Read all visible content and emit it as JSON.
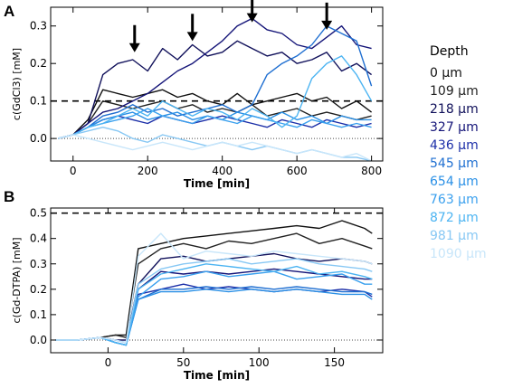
{
  "colors": {
    "depth_0": "#111111",
    "depth_109": "#222222",
    "depth_218": "#10105a",
    "depth_327": "#141478",
    "depth_436": "#1c2fa8",
    "depth_545": "#1f6fd1",
    "depth_654": "#2a90e6",
    "depth_763": "#3aa0ee",
    "depth_872": "#4cb4f2",
    "depth_981": "#88c8f4",
    "depth_1090": "#c8e6fa",
    "reference_dashed": "#000000",
    "zero_dotted": "#444444"
  },
  "legend": {
    "title": "Depth",
    "entries": [
      "0 μm",
      "109 μm",
      "218 μm",
      "327 μm",
      "436 μm",
      "545 μm",
      "654 μm",
      "763 μm",
      "872 μm",
      "981 μm",
      "1090 μm"
    ]
  },
  "chart_data": [
    {
      "panel_label": "A",
      "type": "line",
      "title": "",
      "xlabel": "Time [min]",
      "ylabel": "c(GdCl3) [mM]",
      "xlim": [
        -60,
        830
      ],
      "ylim": [
        -0.06,
        0.35
      ],
      "xticks": [
        0,
        200,
        400,
        600,
        800
      ],
      "yticks": [
        0.0,
        0.1,
        0.2,
        0.3
      ],
      "xtick_labels": [
        "0",
        "200",
        "400",
        "600",
        "800"
      ],
      "ytick_labels": [
        "0.0",
        "0.1",
        "0.2",
        "0.3"
      ],
      "dashed_reference_y": 0.1,
      "dotted_reference_y": 0.0,
      "arrows": [
        {
          "x": 165,
          "y_tip": 0.23
        },
        {
          "x": 320,
          "y_tip": 0.26
        },
        {
          "x": 480,
          "y_tip": 0.31
        },
        {
          "x": 680,
          "y_tip": 0.29
        }
      ],
      "x": [
        -40,
        0,
        40,
        80,
        120,
        160,
        200,
        240,
        280,
        320,
        360,
        400,
        440,
        480,
        520,
        560,
        600,
        640,
        680,
        720,
        760,
        800
      ],
      "series": [
        {
          "name": "0 μm",
          "values": [
            0.0,
            0.01,
            0.05,
            0.13,
            0.12,
            0.11,
            0.12,
            0.13,
            0.11,
            0.12,
            0.1,
            0.09,
            0.12,
            0.09,
            0.1,
            0.11,
            0.12,
            0.1,
            0.11,
            0.08,
            0.1,
            0.07
          ]
        },
        {
          "name": "109 μm",
          "values": [
            0.0,
            0.01,
            0.04,
            0.1,
            0.09,
            0.08,
            0.09,
            0.1,
            0.08,
            0.09,
            0.07,
            0.08,
            0.07,
            0.09,
            0.06,
            0.07,
            0.08,
            0.06,
            0.07,
            0.06,
            0.05,
            0.06
          ]
        },
        {
          "name": "218 μm",
          "values": [
            0.0,
            0.01,
            0.04,
            0.17,
            0.2,
            0.21,
            0.18,
            0.24,
            0.21,
            0.25,
            0.22,
            0.23,
            0.26,
            0.24,
            0.22,
            0.23,
            0.2,
            0.21,
            0.23,
            0.18,
            0.2,
            0.17
          ]
        },
        {
          "name": "327 μm",
          "values": [
            0.0,
            0.01,
            0.04,
            0.07,
            0.08,
            0.1,
            0.12,
            0.15,
            0.18,
            0.2,
            0.23,
            0.26,
            0.3,
            0.32,
            0.29,
            0.28,
            0.25,
            0.24,
            0.27,
            0.3,
            0.25,
            0.24
          ]
        },
        {
          "name": "436 μm",
          "values": [
            0.0,
            0.01,
            0.03,
            0.05,
            0.06,
            0.05,
            0.04,
            0.06,
            0.05,
            0.04,
            0.05,
            0.06,
            0.05,
            0.04,
            0.03,
            0.05,
            0.04,
            0.03,
            0.05,
            0.04,
            0.03,
            0.04
          ]
        },
        {
          "name": "545 μm",
          "values": [
            0.0,
            0.01,
            0.03,
            0.06,
            0.07,
            0.09,
            0.07,
            0.08,
            0.06,
            0.07,
            0.08,
            0.09,
            0.07,
            0.09,
            0.17,
            0.2,
            0.22,
            0.25,
            0.3,
            0.28,
            0.26,
            0.14
          ]
        },
        {
          "name": "654 μm",
          "values": [
            0.0,
            0.01,
            0.03,
            0.05,
            0.06,
            0.07,
            0.05,
            0.06,
            0.07,
            0.05,
            0.06,
            0.05,
            0.07,
            0.06,
            0.05,
            0.07,
            0.05,
            0.06,
            0.04,
            0.06,
            0.05,
            0.05
          ]
        },
        {
          "name": "763 μm",
          "values": [
            0.0,
            0.01,
            0.03,
            0.04,
            0.05,
            0.06,
            0.08,
            0.06,
            0.05,
            0.04,
            0.06,
            0.05,
            0.04,
            0.06,
            0.05,
            0.04,
            0.03,
            0.05,
            0.04,
            0.03,
            0.04,
            0.03
          ]
        },
        {
          "name": "872 μm",
          "values": [
            0.0,
            0.01,
            0.03,
            0.04,
            0.06,
            0.08,
            0.06,
            0.1,
            0.08,
            0.06,
            0.08,
            0.07,
            0.05,
            0.08,
            0.06,
            0.03,
            0.06,
            0.16,
            0.2,
            0.22,
            0.17,
            0.1
          ]
        },
        {
          "name": "981 μm",
          "values": [
            0.0,
            0.01,
            0.02,
            0.03,
            0.02,
            0.0,
            -0.01,
            0.01,
            0.0,
            -0.01,
            -0.02,
            -0.01,
            -0.02,
            -0.03,
            -0.02,
            -0.03,
            -0.04,
            -0.03,
            -0.04,
            -0.05,
            -0.05,
            -0.06
          ]
        },
        {
          "name": "1090 μm",
          "values": [
            0.0,
            0.01,
            0.0,
            -0.01,
            -0.02,
            -0.03,
            -0.02,
            -0.01,
            -0.02,
            -0.03,
            -0.02,
            -0.01,
            -0.02,
            -0.01,
            -0.02,
            -0.03,
            -0.04,
            -0.03,
            -0.04,
            -0.05,
            -0.04,
            -0.06
          ]
        }
      ]
    },
    {
      "panel_label": "B",
      "type": "line",
      "title": "",
      "xlabel": "Time [min]",
      "ylabel": "c(Gd-DTPA) [mM]",
      "xlim": [
        -38,
        182
      ],
      "ylim": [
        -0.05,
        0.52
      ],
      "xticks": [
        0,
        50,
        100,
        150
      ],
      "yticks": [
        0.0,
        0.1,
        0.2,
        0.3,
        0.4,
        0.5
      ],
      "xtick_labels": [
        "0",
        "50",
        "100",
        "150"
      ],
      "ytick_labels": [
        "0.0",
        "0.1",
        "0.2",
        "0.3",
        "0.4",
        "0.5"
      ],
      "dashed_reference_y": 0.5,
      "dotted_reference_y": 0.0,
      "x": [
        -35,
        -20,
        -5,
        5,
        12,
        20,
        35,
        50,
        65,
        80,
        95,
        110,
        125,
        140,
        155,
        170,
        175
      ],
      "series": [
        {
          "name": "0 μm",
          "values": [
            0.0,
            0.0,
            0.01,
            0.02,
            0.02,
            0.36,
            0.38,
            0.4,
            0.41,
            0.42,
            0.43,
            0.44,
            0.45,
            0.44,
            0.47,
            0.44,
            0.42
          ]
        },
        {
          "name": "109 μm",
          "values": [
            0.0,
            0.0,
            0.01,
            0.02,
            0.01,
            0.3,
            0.36,
            0.38,
            0.36,
            0.39,
            0.38,
            0.4,
            0.42,
            0.38,
            0.4,
            0.37,
            0.36
          ]
        },
        {
          "name": "218 μm",
          "values": [
            0.0,
            0.0,
            0.01,
            0.0,
            0.0,
            0.22,
            0.32,
            0.33,
            0.31,
            0.32,
            0.33,
            0.34,
            0.32,
            0.31,
            0.32,
            0.31,
            0.3
          ]
        },
        {
          "name": "327 μm",
          "values": [
            0.0,
            0.0,
            0.01,
            0.0,
            -0.01,
            0.2,
            0.27,
            0.26,
            0.27,
            0.26,
            0.27,
            0.28,
            0.27,
            0.26,
            0.25,
            0.24,
            0.24
          ]
        },
        {
          "name": "436 μm",
          "values": [
            0.0,
            0.0,
            0.01,
            -0.01,
            -0.02,
            0.18,
            0.2,
            0.22,
            0.2,
            0.21,
            0.2,
            0.19,
            0.2,
            0.19,
            0.2,
            0.19,
            0.17
          ]
        },
        {
          "name": "545 μm",
          "values": [
            0.0,
            0.0,
            0.01,
            -0.01,
            -0.02,
            0.16,
            0.2,
            0.2,
            0.21,
            0.2,
            0.21,
            0.2,
            0.21,
            0.2,
            0.19,
            0.19,
            0.18
          ]
        },
        {
          "name": "654 μm",
          "values": [
            0.0,
            0.0,
            0.01,
            -0.01,
            -0.02,
            0.16,
            0.19,
            0.19,
            0.2,
            0.19,
            0.2,
            0.19,
            0.2,
            0.19,
            0.18,
            0.18,
            0.16
          ]
        },
        {
          "name": "763 μm",
          "values": [
            0.0,
            0.0,
            0.01,
            -0.01,
            -0.02,
            0.17,
            0.24,
            0.25,
            0.27,
            0.25,
            0.26,
            0.27,
            0.24,
            0.25,
            0.26,
            0.22,
            0.22
          ]
        },
        {
          "name": "872 μm",
          "values": [
            0.0,
            0.0,
            0.01,
            -0.01,
            -0.02,
            0.2,
            0.26,
            0.28,
            0.3,
            0.29,
            0.28,
            0.27,
            0.29,
            0.26,
            0.27,
            0.25,
            0.24
          ]
        },
        {
          "name": "981 μm",
          "values": [
            0.0,
            0.0,
            0.01,
            0.0,
            -0.01,
            0.22,
            0.28,
            0.3,
            0.31,
            0.32,
            0.3,
            0.31,
            0.32,
            0.3,
            0.29,
            0.28,
            0.27
          ]
        },
        {
          "name": "1090 μm",
          "values": [
            0.0,
            0.0,
            0.01,
            0.0,
            -0.01,
            0.33,
            0.42,
            0.32,
            0.35,
            0.34,
            0.33,
            0.35,
            0.34,
            0.33,
            0.32,
            0.31,
            0.3
          ]
        }
      ]
    }
  ]
}
